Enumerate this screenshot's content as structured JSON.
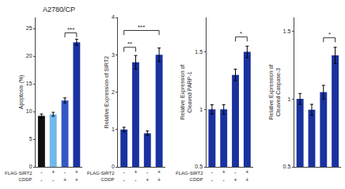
{
  "chart_data": [
    {
      "type": "bar",
      "title": "A2780/CP",
      "ylabel": "Apoptosis (%)",
      "categories": [
        "-\n-",
        "+\n-",
        "-\n+",
        "+\n+"
      ],
      "values": [
        9.2,
        9.5,
        12.0,
        22.5
      ],
      "errors": [
        0.35,
        0.35,
        0.45,
        0.55
      ],
      "colors": [
        "#111111",
        "#70b8e8",
        "#3358c4",
        "#1a32a0"
      ],
      "ylim": [
        0,
        27
      ],
      "yticks": [
        0,
        5,
        10,
        15,
        20,
        25
      ],
      "grid": false,
      "annotations": [
        "FLAG-SIRT2\nCDDP"
      ],
      "significance": [
        {
          "text": "***",
          "x1": 2,
          "x2": 3,
          "y": 24.2
        }
      ]
    },
    {
      "type": "bar",
      "ylabel": "Relative Expression of SIRT2",
      "categories": [
        "-\n-",
        "+\n-",
        "-\n+",
        "+\n+"
      ],
      "values": [
        1.0,
        2.8,
        0.9,
        3.0
      ],
      "errors": [
        0.06,
        0.18,
        0.06,
        0.18
      ],
      "color": "#1a32a0",
      "ylim": [
        0,
        4
      ],
      "yticks": [
        0,
        1,
        2,
        3,
        4
      ],
      "grid": false,
      "annotations": [
        "FLAG-SIRT2\nCDDP"
      ],
      "significance": [
        {
          "text": "**",
          "x1": 0,
          "x2": 1,
          "y": 3.2
        },
        {
          "text": "***",
          "x1": 0,
          "x2": 3,
          "y": 3.65
        }
      ]
    },
    {
      "type": "bar",
      "ylabel": "Relative Expression of\nCleaved PARP-1",
      "categories": [
        "-\n-",
        "+\n-",
        "-\n+",
        "+\n+"
      ],
      "values": [
        1.0,
        1.0,
        1.3,
        1.5
      ],
      "errors": [
        0.04,
        0.04,
        0.05,
        0.05
      ],
      "color": "#1a32a0",
      "ylim": [
        0.5,
        1.8
      ],
      "yticks": [
        0.5,
        1.0,
        1.5
      ],
      "grid": false,
      "annotations": [
        "FLAG-SIRT2\nCDDP"
      ],
      "significance": [
        {
          "text": "*",
          "x1": 2,
          "x2": 3,
          "y": 1.63
        }
      ]
    },
    {
      "type": "bar",
      "ylabel": "Relative Expression of\nCleaved Caspase-3",
      "categories": [
        null,
        null,
        null,
        null
      ],
      "values": [
        1.0,
        0.92,
        1.05,
        1.32
      ],
      "errors": [
        0.04,
        0.04,
        0.05,
        0.06
      ],
      "color": "#1a32a0",
      "ylim": [
        0.5,
        1.6
      ],
      "yticks": [
        0.5,
        1.0,
        1.5
      ],
      "grid": false,
      "tick_labels": "y",
      "significance": [
        {
          "text": "*",
          "x1": 2,
          "x2": 3,
          "y": 1.45
        }
      ]
    }
  ]
}
